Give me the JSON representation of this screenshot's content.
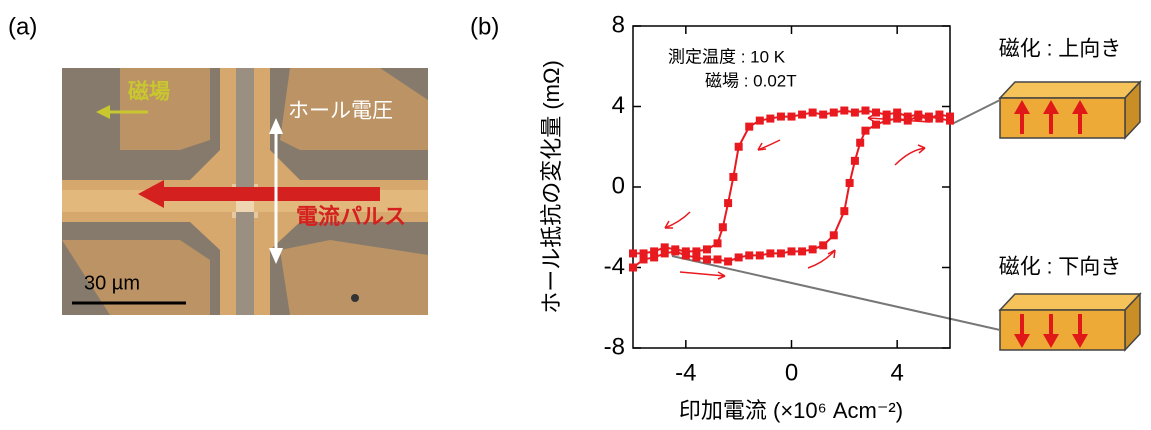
{
  "panel_a": {
    "label": "(a)",
    "field": "磁場",
    "hall_voltage": "ホール電圧",
    "current_pulse": "電流パルス",
    "scale_bar": "30 µm"
  },
  "insets": [
    "磁化 : 上向き",
    "磁化 : 下向き"
  ],
  "chart_data": {
    "type": "line",
    "label": "(b)",
    "xlabel": "印加電流 (×10⁶ Acm⁻²)",
    "ylabel": "ホール抵抗の変化量 (mΩ)",
    "annotations": [
      "測定温度 : 10 K",
      "磁場 : 0.02T"
    ],
    "xlim": [
      -6,
      6
    ],
    "xticks": [
      -4,
      0,
      4
    ],
    "ylim": [
      -8,
      8
    ],
    "yticks": [
      -8,
      -4,
      0,
      4,
      8
    ],
    "series": [
      {
        "color": "#e8191f",
        "x": [
          6,
          5.6,
          5.2,
          4.8,
          4.4,
          4,
          3.6,
          3.2,
          2.8,
          2.4,
          2,
          1.6,
          1.2,
          0.8,
          0.4,
          0,
          -0.4,
          -0.8,
          -1.2,
          -1.6,
          -2,
          -2.2,
          -2.4,
          -2.6,
          -2.8,
          -3.2,
          -3.6,
          -4,
          -4.4,
          -4.8,
          -5.2,
          -5.6,
          -6
        ],
        "values": [
          3.3,
          3.4,
          3.5,
          3.6,
          3.5,
          3.7,
          3.6,
          3.7,
          3.8,
          3.7,
          3.8,
          3.7,
          3.6,
          3.7,
          3.6,
          3.5,
          3.5,
          3.4,
          3.3,
          3.0,
          2.0,
          0.5,
          -0.8,
          -2.0,
          -2.8,
          -3.1,
          -3.2,
          -3.2,
          -3.1,
          -3.0,
          -3.2,
          -3.3,
          -3.3
        ]
      },
      {
        "color": "#e8191f",
        "x": [
          -6,
          -5.6,
          -5.2,
          -4.8,
          -4.4,
          -4,
          -3.6,
          -3.2,
          -2.8,
          -2.4,
          -2,
          -1.6,
          -1.2,
          -0.8,
          -0.4,
          0,
          0.4,
          0.8,
          1.2,
          1.6,
          2,
          2.2,
          2.4,
          2.6,
          2.8,
          3.2,
          3.6,
          4,
          4.4,
          4.8,
          5.2,
          5.6,
          6
        ],
        "values": [
          -4.0,
          -3.6,
          -3.5,
          -3.3,
          -3.2,
          -3.4,
          -3.5,
          -3.6,
          -3.6,
          -3.7,
          -3.5,
          -3.4,
          -3.4,
          -3.3,
          -3.3,
          -3.2,
          -3.2,
          -3.1,
          -2.9,
          -2.4,
          -1.2,
          0.2,
          1.3,
          2.2,
          2.8,
          3.1,
          3.3,
          3.4,
          3.3,
          3.5,
          3.4,
          3.6,
          3.5
        ]
      }
    ]
  }
}
